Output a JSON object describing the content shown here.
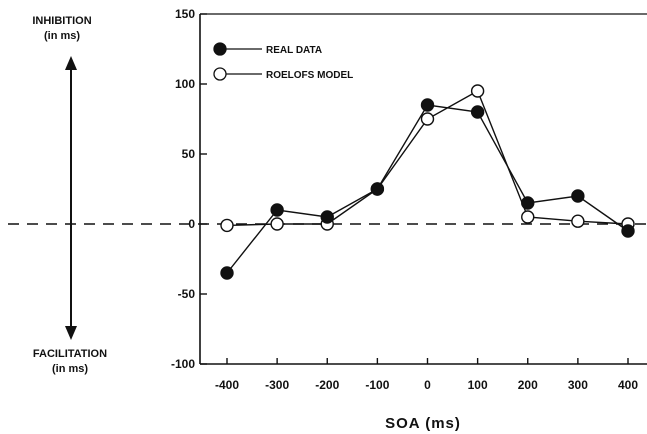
{
  "chart_data": {
    "type": "line",
    "x": [
      -400,
      -300,
      -200,
      -100,
      0,
      100,
      200,
      300,
      400
    ],
    "x_ticks": [
      "-400",
      "-300",
      "-200",
      "-100",
      "0",
      "100",
      "200",
      "300",
      "400"
    ],
    "y_ticks": [
      "150",
      "100",
      "50",
      "0",
      "-50",
      "-100"
    ],
    "xlabel": "SOA (ms)",
    "ylabel": "",
    "xlim": [
      -450,
      420
    ],
    "ylim": [
      -100,
      150
    ],
    "grid": false,
    "legend_position": "top-left",
    "series": [
      {
        "name": "REAL DATA",
        "marker": "filled-circle",
        "values": [
          -35,
          10,
          5,
          25,
          85,
          80,
          15,
          20,
          -5
        ]
      },
      {
        "name": "ROELOFS MODEL",
        "marker": "open-circle",
        "values": [
          -1,
          0,
          0,
          25,
          75,
          95,
          5,
          2,
          0
        ]
      }
    ],
    "annotations": {
      "inhibition_title": "INHIBITION",
      "inhibition_unit": "(in ms)",
      "facilitation_title": "FACILITATION",
      "facilitation_unit": "(in ms)"
    },
    "colors": {
      "ink": "#111111",
      "background": "#ffffff"
    }
  }
}
